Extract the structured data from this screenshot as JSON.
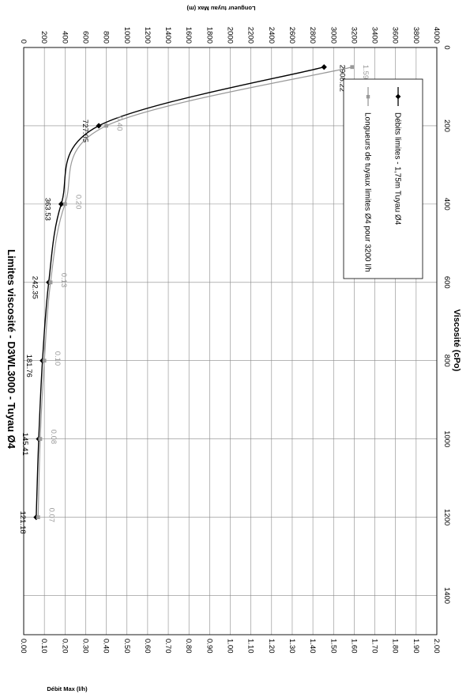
{
  "chart_data": {
    "type": "line",
    "title": "Limites viscosité - D3WL3000 - Tuyau Ø4",
    "xlabel": "Viscosité (cPo)",
    "ylabel": "Débit Max (l/h)",
    "y2label": "Longueur tuyau Max (m)",
    "xlim": [
      0,
      1500
    ],
    "ylim": [
      0,
      4000
    ],
    "y2lim": [
      0,
      2.0
    ],
    "x_ticks": [
      0,
      200,
      400,
      600,
      800,
      1000,
      1200,
      1400
    ],
    "y_ticks": [
      0,
      200,
      400,
      600,
      800,
      1000,
      1200,
      1400,
      1600,
      1800,
      2000,
      2200,
      2400,
      2600,
      2800,
      3000,
      3200,
      3400,
      3600,
      3800,
      4000
    ],
    "y2_ticks": [
      "0.00",
      "0.10",
      "0.20",
      "0.30",
      "0.40",
      "0.50",
      "0.60",
      "0.70",
      "0.80",
      "0.90",
      "1.00",
      "1.10",
      "1.20",
      "1.30",
      "1.40",
      "1.50",
      "1.60",
      "1.70",
      "1.80",
      "1.90",
      "2.00"
    ],
    "grid": true,
    "legend_position": "top-right",
    "series": [
      {
        "name": "Débits limites - 1,75m Tuyau Ø4",
        "axis": "primary",
        "color": "#000000",
        "marker": "diamond",
        "x": [
          50,
          200,
          400,
          600,
          800,
          1000,
          1200
        ],
        "y": [
          2908.22,
          727.05,
          363.53,
          242.35,
          181.76,
          145.41,
          121.18
        ],
        "labels": [
          "2908.22",
          "727.05",
          "363.53",
          "242.35",
          "181.76",
          "145.41",
          "121.18"
        ]
      },
      {
        "name": "Longueurs de tuyaux limites Ø4 pour 3200 l/h",
        "axis": "secondary",
        "color": "#999999",
        "marker": "square",
        "x": [
          50,
          200,
          400,
          600,
          800,
          1000,
          1200
        ],
        "y": [
          1.59,
          0.4,
          0.2,
          0.13,
          0.1,
          0.08,
          0.07
        ],
        "labels": [
          "1.59",
          "0.40",
          "0.20",
          "0.13",
          "0.10",
          "0.08",
          "0.07"
        ]
      }
    ]
  }
}
